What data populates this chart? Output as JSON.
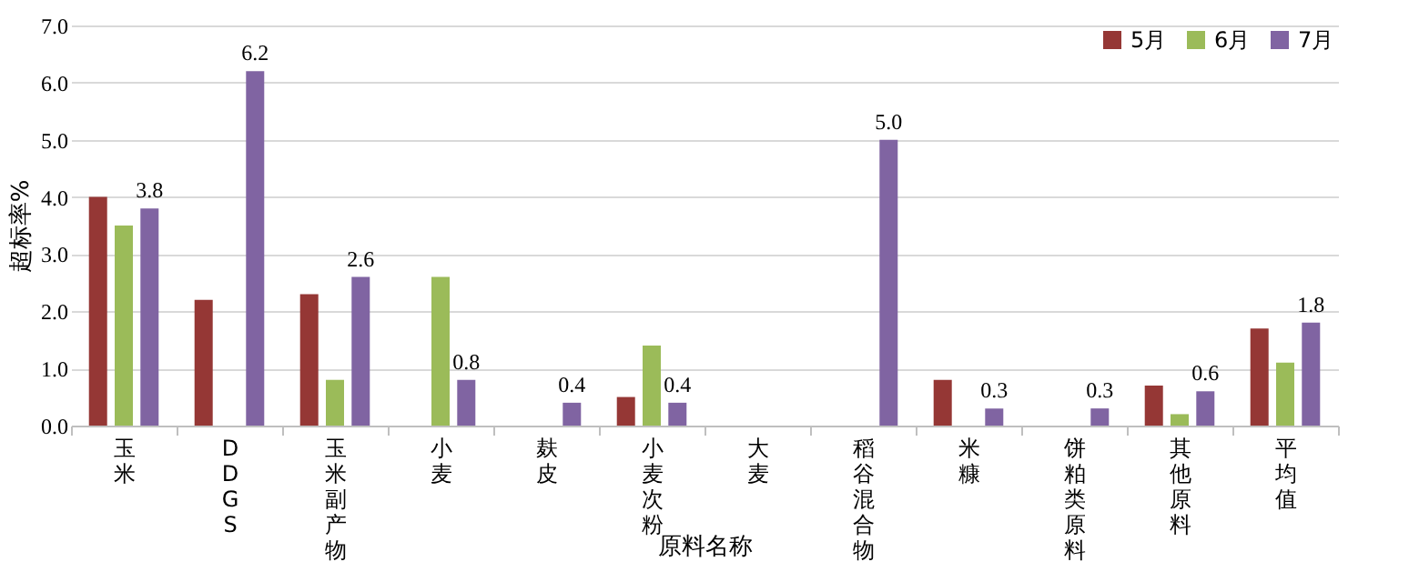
{
  "chart_data": {
    "type": "bar",
    "xlabel": "原料名称",
    "ylabel": "超标率%",
    "categories": [
      "玉米",
      "DDGS",
      "玉米副产物",
      "小麦",
      "麸皮",
      "小麦次粉",
      "大麦",
      "稻谷混合物",
      "米糠",
      "饼粕类原料",
      "其他原料",
      "平均值"
    ],
    "series": [
      {
        "name": "5月",
        "color": "#953735",
        "values": [
          4.0,
          2.2,
          2.3,
          null,
          null,
          0.5,
          null,
          null,
          0.8,
          null,
          0.7,
          1.7
        ]
      },
      {
        "name": "6月",
        "color": "#9bbb59",
        "values": [
          3.5,
          null,
          0.8,
          2.6,
          null,
          1.4,
          null,
          null,
          null,
          null,
          0.2,
          1.1
        ]
      },
      {
        "name": "7月",
        "color": "#8064a2",
        "values": [
          3.8,
          6.2,
          2.6,
          0.8,
          0.4,
          0.4,
          null,
          5.0,
          0.3,
          0.3,
          0.6,
          1.8
        ],
        "value_labels": [
          "3.8",
          "6.2",
          "2.6",
          "0.8",
          "0.4",
          "0.4",
          null,
          "5.0",
          "0.3",
          "0.3",
          "0.6",
          "1.8"
        ]
      }
    ],
    "ylim": [
      0,
      7
    ],
    "yticks": [
      {
        "value": 0,
        "label": "0.0"
      },
      {
        "value": 1,
        "label": "1.0"
      },
      {
        "value": 2,
        "label": "2.0"
      },
      {
        "value": 3,
        "label": "3.0"
      },
      {
        "value": 4,
        "label": "4.0"
      },
      {
        "value": 5,
        "label": "5.0"
      },
      {
        "value": 6,
        "label": "6.0"
      },
      {
        "value": 7,
        "label": "7.0"
      }
    ],
    "grid": "y",
    "legend": "top right"
  }
}
